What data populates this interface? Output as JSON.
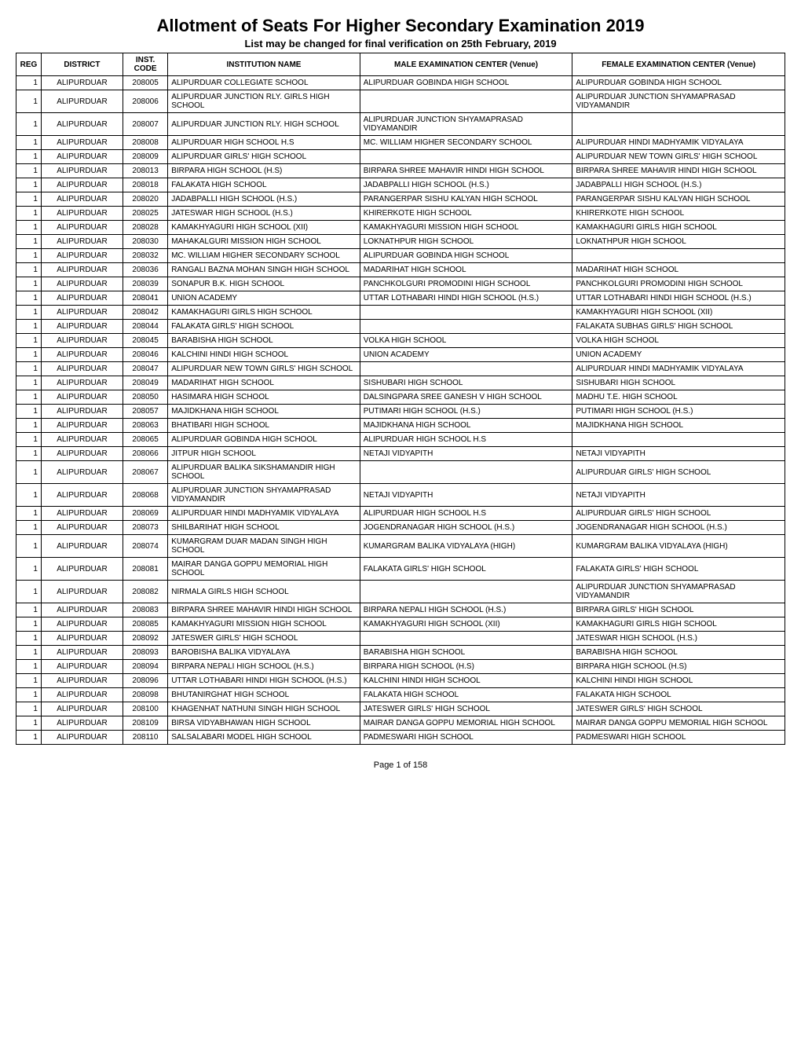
{
  "title": "Allotment of Seats For Higher Secondary Examination 2019",
  "subtitle": "List may be changed for final verification on 25th February, 2019",
  "footer": "Page 1 of 158",
  "columns": [
    "REG",
    "DISTRICT",
    "INST. CODE",
    "INSTITUTION NAME",
    "MALE EXAMINATION CENTER (Venue)",
    "FEMALE EXAMINATION CENTER (Venue)"
  ],
  "rows": [
    [
      "1",
      "ALIPURDUAR",
      "208005",
      "ALIPURDUAR COLLEGIATE SCHOOL",
      "ALIPURDUAR GOBINDA HIGH SCHOOL",
      "ALIPURDUAR GOBINDA HIGH SCHOOL"
    ],
    [
      "1",
      "ALIPURDUAR",
      "208006",
      "ALIPURDUAR JUNCTION RLY. GIRLS HIGH SCHOOL",
      "",
      "ALIPURDUAR JUNCTION SHYAMAPRASAD VIDYAMANDIR"
    ],
    [
      "1",
      "ALIPURDUAR",
      "208007",
      "ALIPURDUAR JUNCTION RLY. HIGH SCHOOL",
      "ALIPURDUAR JUNCTION SHYAMAPRASAD VIDYAMANDIR",
      ""
    ],
    [
      "1",
      "ALIPURDUAR",
      "208008",
      "ALIPURDUAR HIGH SCHOOL H.S",
      "MC. WILLIAM HIGHER SECONDARY SCHOOL",
      "ALIPURDUAR HINDI MADHYAMIK VIDYALAYA"
    ],
    [
      "1",
      "ALIPURDUAR",
      "208009",
      "ALIPURDUAR GIRLS' HIGH SCHOOL",
      "",
      "ALIPURDUAR NEW TOWN GIRLS' HIGH SCHOOL"
    ],
    [
      "1",
      "ALIPURDUAR",
      "208013",
      "BIRPARA HIGH SCHOOL (H.S)",
      "BIRPARA SHREE MAHAVIR HINDI HIGH SCHOOL",
      "BIRPARA SHREE MAHAVIR HINDI HIGH SCHOOL"
    ],
    [
      "1",
      "ALIPURDUAR",
      "208018",
      "FALAKATA HIGH SCHOOL",
      "JADABPALLI HIGH SCHOOL (H.S.)",
      "JADABPALLI HIGH SCHOOL (H.S.)"
    ],
    [
      "1",
      "ALIPURDUAR",
      "208020",
      "JADABPALLI HIGH SCHOOL (H.S.)",
      "PARANGERPAR SISHU KALYAN HIGH SCHOOL",
      "PARANGERPAR SISHU KALYAN HIGH SCHOOL"
    ],
    [
      "1",
      "ALIPURDUAR",
      "208025",
      "JATESWAR HIGH SCHOOL (H.S.)",
      "KHIRERKOTE HIGH SCHOOL",
      "KHIRERKOTE HIGH SCHOOL"
    ],
    [
      "1",
      "ALIPURDUAR",
      "208028",
      "KAMAKHYAGURI HIGH SCHOOL (XII)",
      "KAMAKHYAGURI MISSION HIGH SCHOOL",
      "KAMAKHAGURI GIRLS HIGH SCHOOL"
    ],
    [
      "1",
      "ALIPURDUAR",
      "208030",
      "MAHAKALGURI MISSION HIGH SCHOOL",
      "LOKNATHPUR HIGH SCHOOL",
      "LOKNATHPUR HIGH SCHOOL"
    ],
    [
      "1",
      "ALIPURDUAR",
      "208032",
      "MC. WILLIAM HIGHER SECONDARY SCHOOL",
      "ALIPURDUAR GOBINDA HIGH SCHOOL",
      ""
    ],
    [
      "1",
      "ALIPURDUAR",
      "208036",
      "RANGALI BAZNA MOHAN SINGH HIGH SCHOOL",
      "MADARIHAT HIGH SCHOOL",
      "MADARIHAT HIGH SCHOOL"
    ],
    [
      "1",
      "ALIPURDUAR",
      "208039",
      "SONAPUR B.K. HIGH SCHOOL",
      "PANCHKOLGURI PROMODINI HIGH SCHOOL",
      "PANCHKOLGURI PROMODINI HIGH SCHOOL"
    ],
    [
      "1",
      "ALIPURDUAR",
      "208041",
      "UNION ACADEMY",
      "UTTAR LOTHABARI HINDI HIGH SCHOOL (H.S.)",
      "UTTAR LOTHABARI HINDI HIGH SCHOOL (H.S.)"
    ],
    [
      "1",
      "ALIPURDUAR",
      "208042",
      "KAMAKHAGURI GIRLS HIGH SCHOOL",
      "",
      "KAMAKHYAGURI HIGH SCHOOL (XII)"
    ],
    [
      "1",
      "ALIPURDUAR",
      "208044",
      "FALAKATA GIRLS' HIGH SCHOOL",
      "",
      "FALAKATA SUBHAS GIRLS' HIGH SCHOOL"
    ],
    [
      "1",
      "ALIPURDUAR",
      "208045",
      "BARABISHA HIGH SCHOOL",
      "VOLKA HIGH SCHOOL",
      "VOLKA HIGH SCHOOL"
    ],
    [
      "1",
      "ALIPURDUAR",
      "208046",
      "KALCHINI HINDI HIGH SCHOOL",
      "UNION ACADEMY",
      "UNION ACADEMY"
    ],
    [
      "1",
      "ALIPURDUAR",
      "208047",
      "ALIPURDUAR NEW TOWN GIRLS' HIGH SCHOOL",
      "",
      "ALIPURDUAR HINDI MADHYAMIK VIDYALAYA"
    ],
    [
      "1",
      "ALIPURDUAR",
      "208049",
      "MADARIHAT HIGH SCHOOL",
      "SISHUBARI HIGH SCHOOL",
      "SISHUBARI HIGH SCHOOL"
    ],
    [
      "1",
      "ALIPURDUAR",
      "208050",
      "HASIMARA HIGH SCHOOL",
      "DALSINGPARA SREE GANESH V HIGH SCHOOL",
      "MADHU T.E. HIGH SCHOOL"
    ],
    [
      "1",
      "ALIPURDUAR",
      "208057",
      "MAJIDKHANA HIGH SCHOOL",
      "PUTIMARI HIGH SCHOOL (H.S.)",
      "PUTIMARI HIGH SCHOOL (H.S.)"
    ],
    [
      "1",
      "ALIPURDUAR",
      "208063",
      "BHATIBARI HIGH SCHOOL",
      "MAJIDKHANA HIGH SCHOOL",
      "MAJIDKHANA HIGH SCHOOL"
    ],
    [
      "1",
      "ALIPURDUAR",
      "208065",
      "ALIPURDUAR GOBINDA HIGH SCHOOL",
      "ALIPURDUAR HIGH SCHOOL H.S",
      ""
    ],
    [
      "1",
      "ALIPURDUAR",
      "208066",
      "JITPUR HIGH SCHOOL",
      "NETAJI VIDYAPITH",
      "NETAJI VIDYAPITH"
    ],
    [
      "1",
      "ALIPURDUAR",
      "208067",
      "ALIPURDUAR BALIKA SIKSHAMANDIR HIGH SCHOOL",
      "",
      "ALIPURDUAR GIRLS' HIGH SCHOOL"
    ],
    [
      "1",
      "ALIPURDUAR",
      "208068",
      "ALIPURDUAR JUNCTION SHYAMAPRASAD VIDYAMANDIR",
      "NETAJI VIDYAPITH",
      "NETAJI VIDYAPITH"
    ],
    [
      "1",
      "ALIPURDUAR",
      "208069",
      "ALIPURDUAR HINDI MADHYAMIK VIDYALAYA",
      "ALIPURDUAR HIGH SCHOOL H.S",
      "ALIPURDUAR GIRLS' HIGH SCHOOL"
    ],
    [
      "1",
      "ALIPURDUAR",
      "208073",
      "SHILBARIHAT HIGH SCHOOL",
      "JOGENDRANAGAR HIGH SCHOOL (H.S.)",
      "JOGENDRANAGAR HIGH SCHOOL (H.S.)"
    ],
    [
      "1",
      "ALIPURDUAR",
      "208074",
      "KUMARGRAM DUAR MADAN SINGH HIGH SCHOOL",
      "KUMARGRAM BALIKA VIDYALAYA (HIGH)",
      "KUMARGRAM BALIKA VIDYALAYA (HIGH)"
    ],
    [
      "1",
      "ALIPURDUAR",
      "208081",
      "MAIRAR DANGA GOPPU MEMORIAL HIGH SCHOOL",
      "FALAKATA GIRLS' HIGH SCHOOL",
      "FALAKATA GIRLS' HIGH SCHOOL"
    ],
    [
      "1",
      "ALIPURDUAR",
      "208082",
      "NIRMALA GIRLS HIGH SCHOOL",
      "",
      "ALIPURDUAR JUNCTION SHYAMAPRASAD VIDYAMANDIR"
    ],
    [
      "1",
      "ALIPURDUAR",
      "208083",
      "BIRPARA SHREE MAHAVIR HINDI HIGH SCHOOL",
      "BIRPARA NEPALI HIGH SCHOOL (H.S.)",
      "BIRPARA GIRLS' HIGH SCHOOL"
    ],
    [
      "1",
      "ALIPURDUAR",
      "208085",
      "KAMAKHYAGURI MISSION HIGH SCHOOL",
      "KAMAKHYAGURI HIGH SCHOOL (XII)",
      "KAMAKHAGURI GIRLS HIGH SCHOOL"
    ],
    [
      "1",
      "ALIPURDUAR",
      "208092",
      "JATESWER GIRLS' HIGH SCHOOL",
      "",
      "JATESWAR HIGH SCHOOL (H.S.)"
    ],
    [
      "1",
      "ALIPURDUAR",
      "208093",
      "BAROBISHA BALIKA VIDYALAYA",
      "BARABISHA HIGH SCHOOL",
      "BARABISHA HIGH SCHOOL"
    ],
    [
      "1",
      "ALIPURDUAR",
      "208094",
      "BIRPARA NEPALI HIGH SCHOOL (H.S.)",
      "BIRPARA HIGH SCHOOL (H.S)",
      "BIRPARA HIGH SCHOOL (H.S)"
    ],
    [
      "1",
      "ALIPURDUAR",
      "208096",
      "UTTAR LOTHABARI HINDI HIGH SCHOOL (H.S.)",
      "KALCHINI HINDI HIGH SCHOOL",
      "KALCHINI HINDI HIGH SCHOOL"
    ],
    [
      "1",
      "ALIPURDUAR",
      "208098",
      "BHUTANIRGHAT HIGH SCHOOL",
      "FALAKATA HIGH SCHOOL",
      "FALAKATA HIGH SCHOOL"
    ],
    [
      "1",
      "ALIPURDUAR",
      "208100",
      "KHAGENHAT NATHUNI SINGH HIGH SCHOOL",
      "JATESWER GIRLS' HIGH SCHOOL",
      "JATESWER GIRLS' HIGH SCHOOL"
    ],
    [
      "1",
      "ALIPURDUAR",
      "208109",
      "BIRSA VIDYABHAWAN HIGH SCHOOL",
      "MAIRAR DANGA GOPPU MEMORIAL HIGH SCHOOL",
      "MAIRAR DANGA GOPPU MEMORIAL HIGH SCHOOL"
    ],
    [
      "1",
      "ALIPURDUAR",
      "208110",
      "SALSALABARI MODEL HIGH SCHOOL",
      "PADMESWARI HIGH SCHOOL",
      "PADMESWARI HIGH SCHOOL"
    ]
  ]
}
